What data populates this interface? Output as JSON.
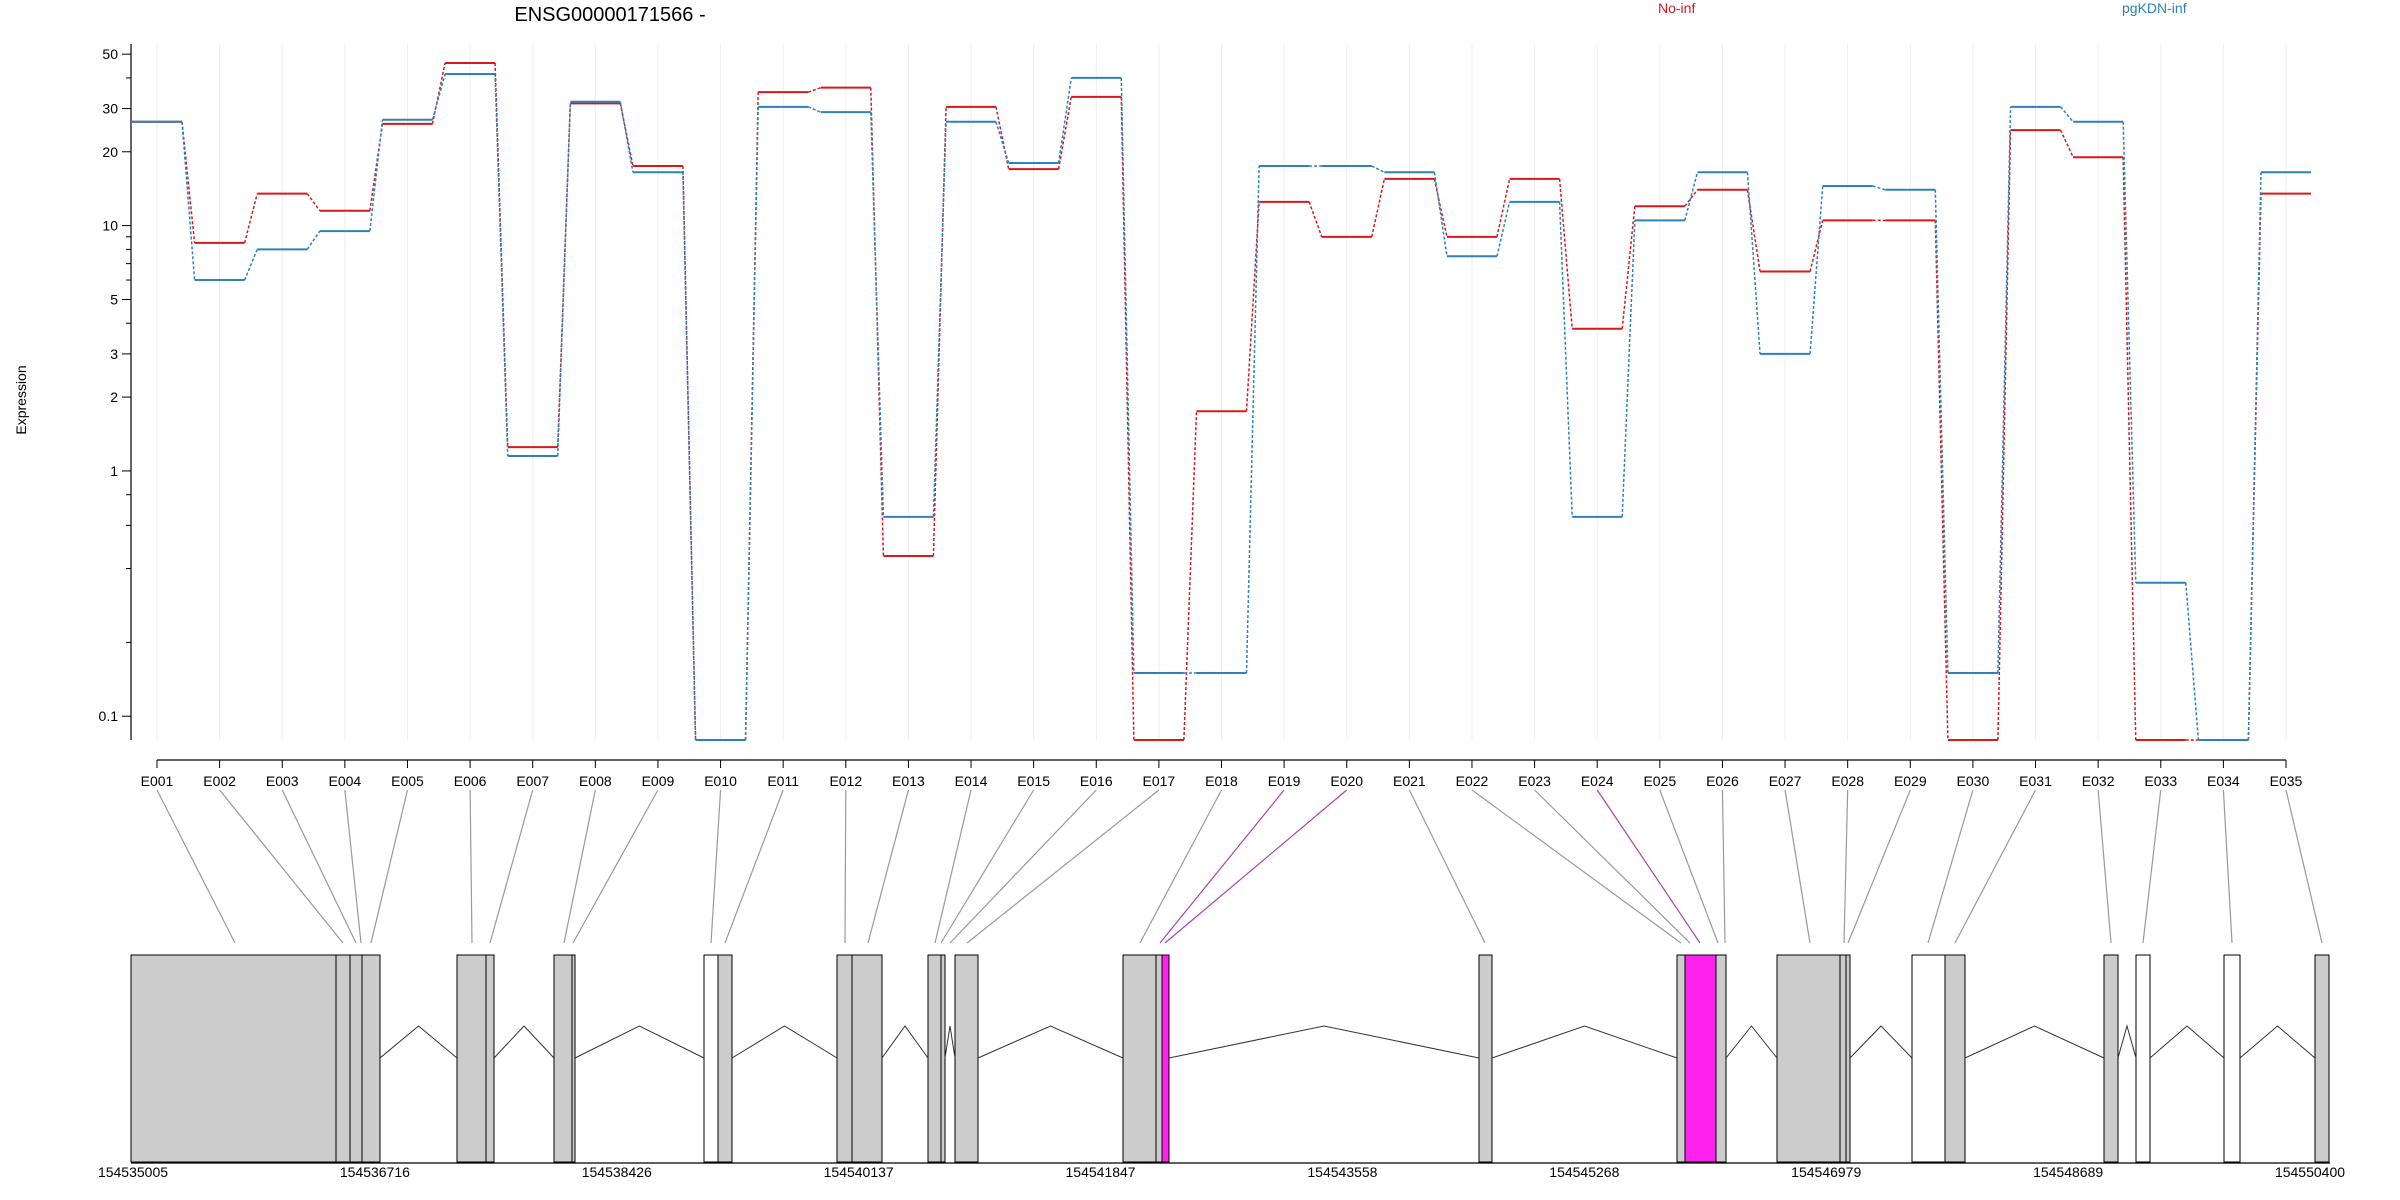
{
  "title": "ENSG00000171566 -",
  "legend": [
    {
      "label": "No-inf",
      "color": "#d7191c"
    },
    {
      "label": "pgKDN-inf",
      "color": "#2b83ba"
    }
  ],
  "chart_data": {
    "type": "line",
    "title": "ENSG00000171566 -",
    "ylabel": "Expression",
    "xlabel": "",
    "yscale": "log",
    "ylim": [
      0.08,
      55
    ],
    "yticks": [
      0.1,
      1,
      2,
      3,
      5,
      10,
      20,
      30,
      50
    ],
    "ytick_labels": [
      "0.1",
      "1",
      "2",
      "3",
      "5",
      "10",
      "20",
      "30",
      "50"
    ],
    "categories": [
      "E001",
      "E002",
      "E003",
      "E004",
      "E005",
      "E006",
      "E007",
      "E008",
      "E009",
      "E010",
      "E011",
      "E012",
      "E013",
      "E014",
      "E015",
      "E016",
      "E017",
      "E018",
      "E019",
      "E020",
      "E021",
      "E022",
      "E023",
      "E024",
      "E025",
      "E026",
      "E027",
      "E028",
      "E029",
      "E030",
      "E031",
      "E032",
      "E033",
      "E034",
      "E035"
    ],
    "series": [
      {
        "name": "No-inf",
        "color": "#d7191c",
        "values": [
          26.5,
          8.5,
          13.5,
          11.5,
          26,
          46,
          1.25,
          31.5,
          17.5,
          0.08,
          35,
          36.5,
          0.45,
          30.5,
          17,
          33.5,
          0.08,
          1.75,
          12.5,
          9,
          15.5,
          9,
          15.5,
          3.8,
          12,
          14,
          6.5,
          10.5,
          10.5,
          0.08,
          24.5,
          19,
          0.08,
          0.08,
          13.5
        ]
      },
      {
        "name": "pgKDN-inf",
        "color": "#2b83ba",
        "values": [
          26.5,
          6,
          8,
          9.5,
          27,
          41.5,
          1.15,
          32,
          16.5,
          0.08,
          30.5,
          29,
          0.65,
          26.5,
          18,
          40,
          0.15,
          0.15,
          17.5,
          17.5,
          16.5,
          7.5,
          12.5,
          0.65,
          10.5,
          16.5,
          3,
          14.5,
          14,
          0.15,
          30.5,
          26.5,
          0.35,
          0.08,
          16.5
        ]
      }
    ],
    "gene_axis_ticks": [
      "154535005",
      "154536716",
      "154538426",
      "154540137",
      "154541847",
      "154543558",
      "154545268",
      "154546979",
      "154548689",
      "154550400"
    ],
    "grid": true,
    "legend_position": "top"
  }
}
